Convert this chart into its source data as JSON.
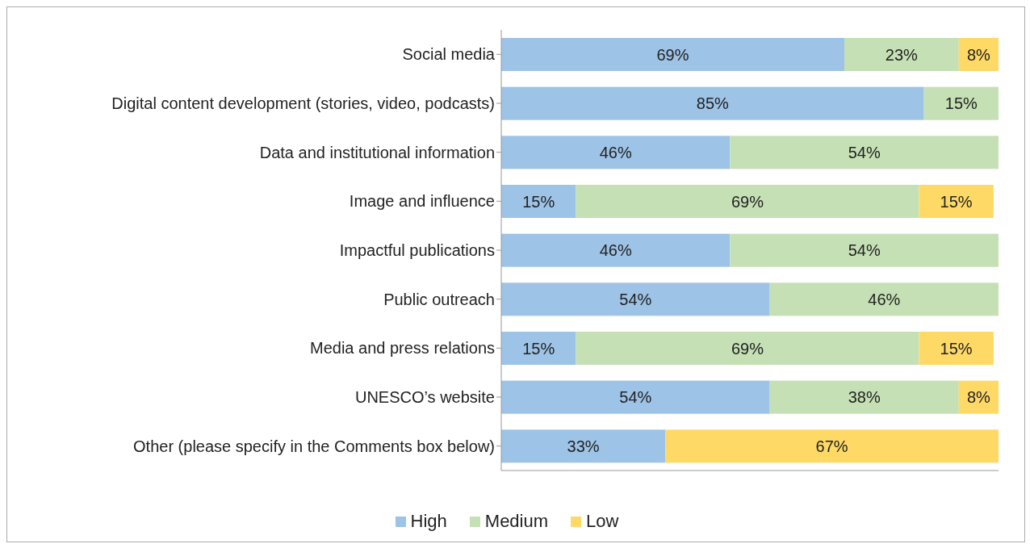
{
  "chart_data": {
    "type": "bar",
    "orientation": "horizontal",
    "stacked": true,
    "categories": [
      "Social media",
      "Digital content development (stories, video, podcasts)",
      "Data and institutional information",
      "Image and influence",
      "Impactful publications",
      "Public outreach",
      "Media and press relations",
      "UNESCO’s website",
      "Other (please specify in the Comments box below)"
    ],
    "series": [
      {
        "name": "High",
        "color": "#9dc3e6",
        "values": [
          69,
          85,
          46,
          15,
          46,
          54,
          15,
          54,
          33
        ],
        "value_labels": [
          "69%",
          "85%",
          "46%",
          "15%",
          "46%",
          "54%",
          "15%",
          "54%",
          "33%"
        ]
      },
      {
        "name": "Medium",
        "color": "#c5e0b4",
        "values": [
          23,
          15,
          54,
          69,
          54,
          46,
          69,
          38,
          null
        ],
        "value_labels": [
          "23%",
          "15%",
          "54%",
          "69%",
          "54%",
          "46%",
          "69%",
          "38%",
          null
        ]
      },
      {
        "name": "Low",
        "color": "#ffd966",
        "values": [
          8,
          null,
          null,
          15,
          null,
          null,
          15,
          8,
          67
        ],
        "value_labels": [
          "8%",
          null,
          null,
          "15%",
          null,
          null,
          "15%",
          "8%",
          "67%"
        ]
      }
    ],
    "xlim": [
      0,
      100
    ],
    "tick_labels": "y",
    "grid": false,
    "legend": "bottom"
  }
}
